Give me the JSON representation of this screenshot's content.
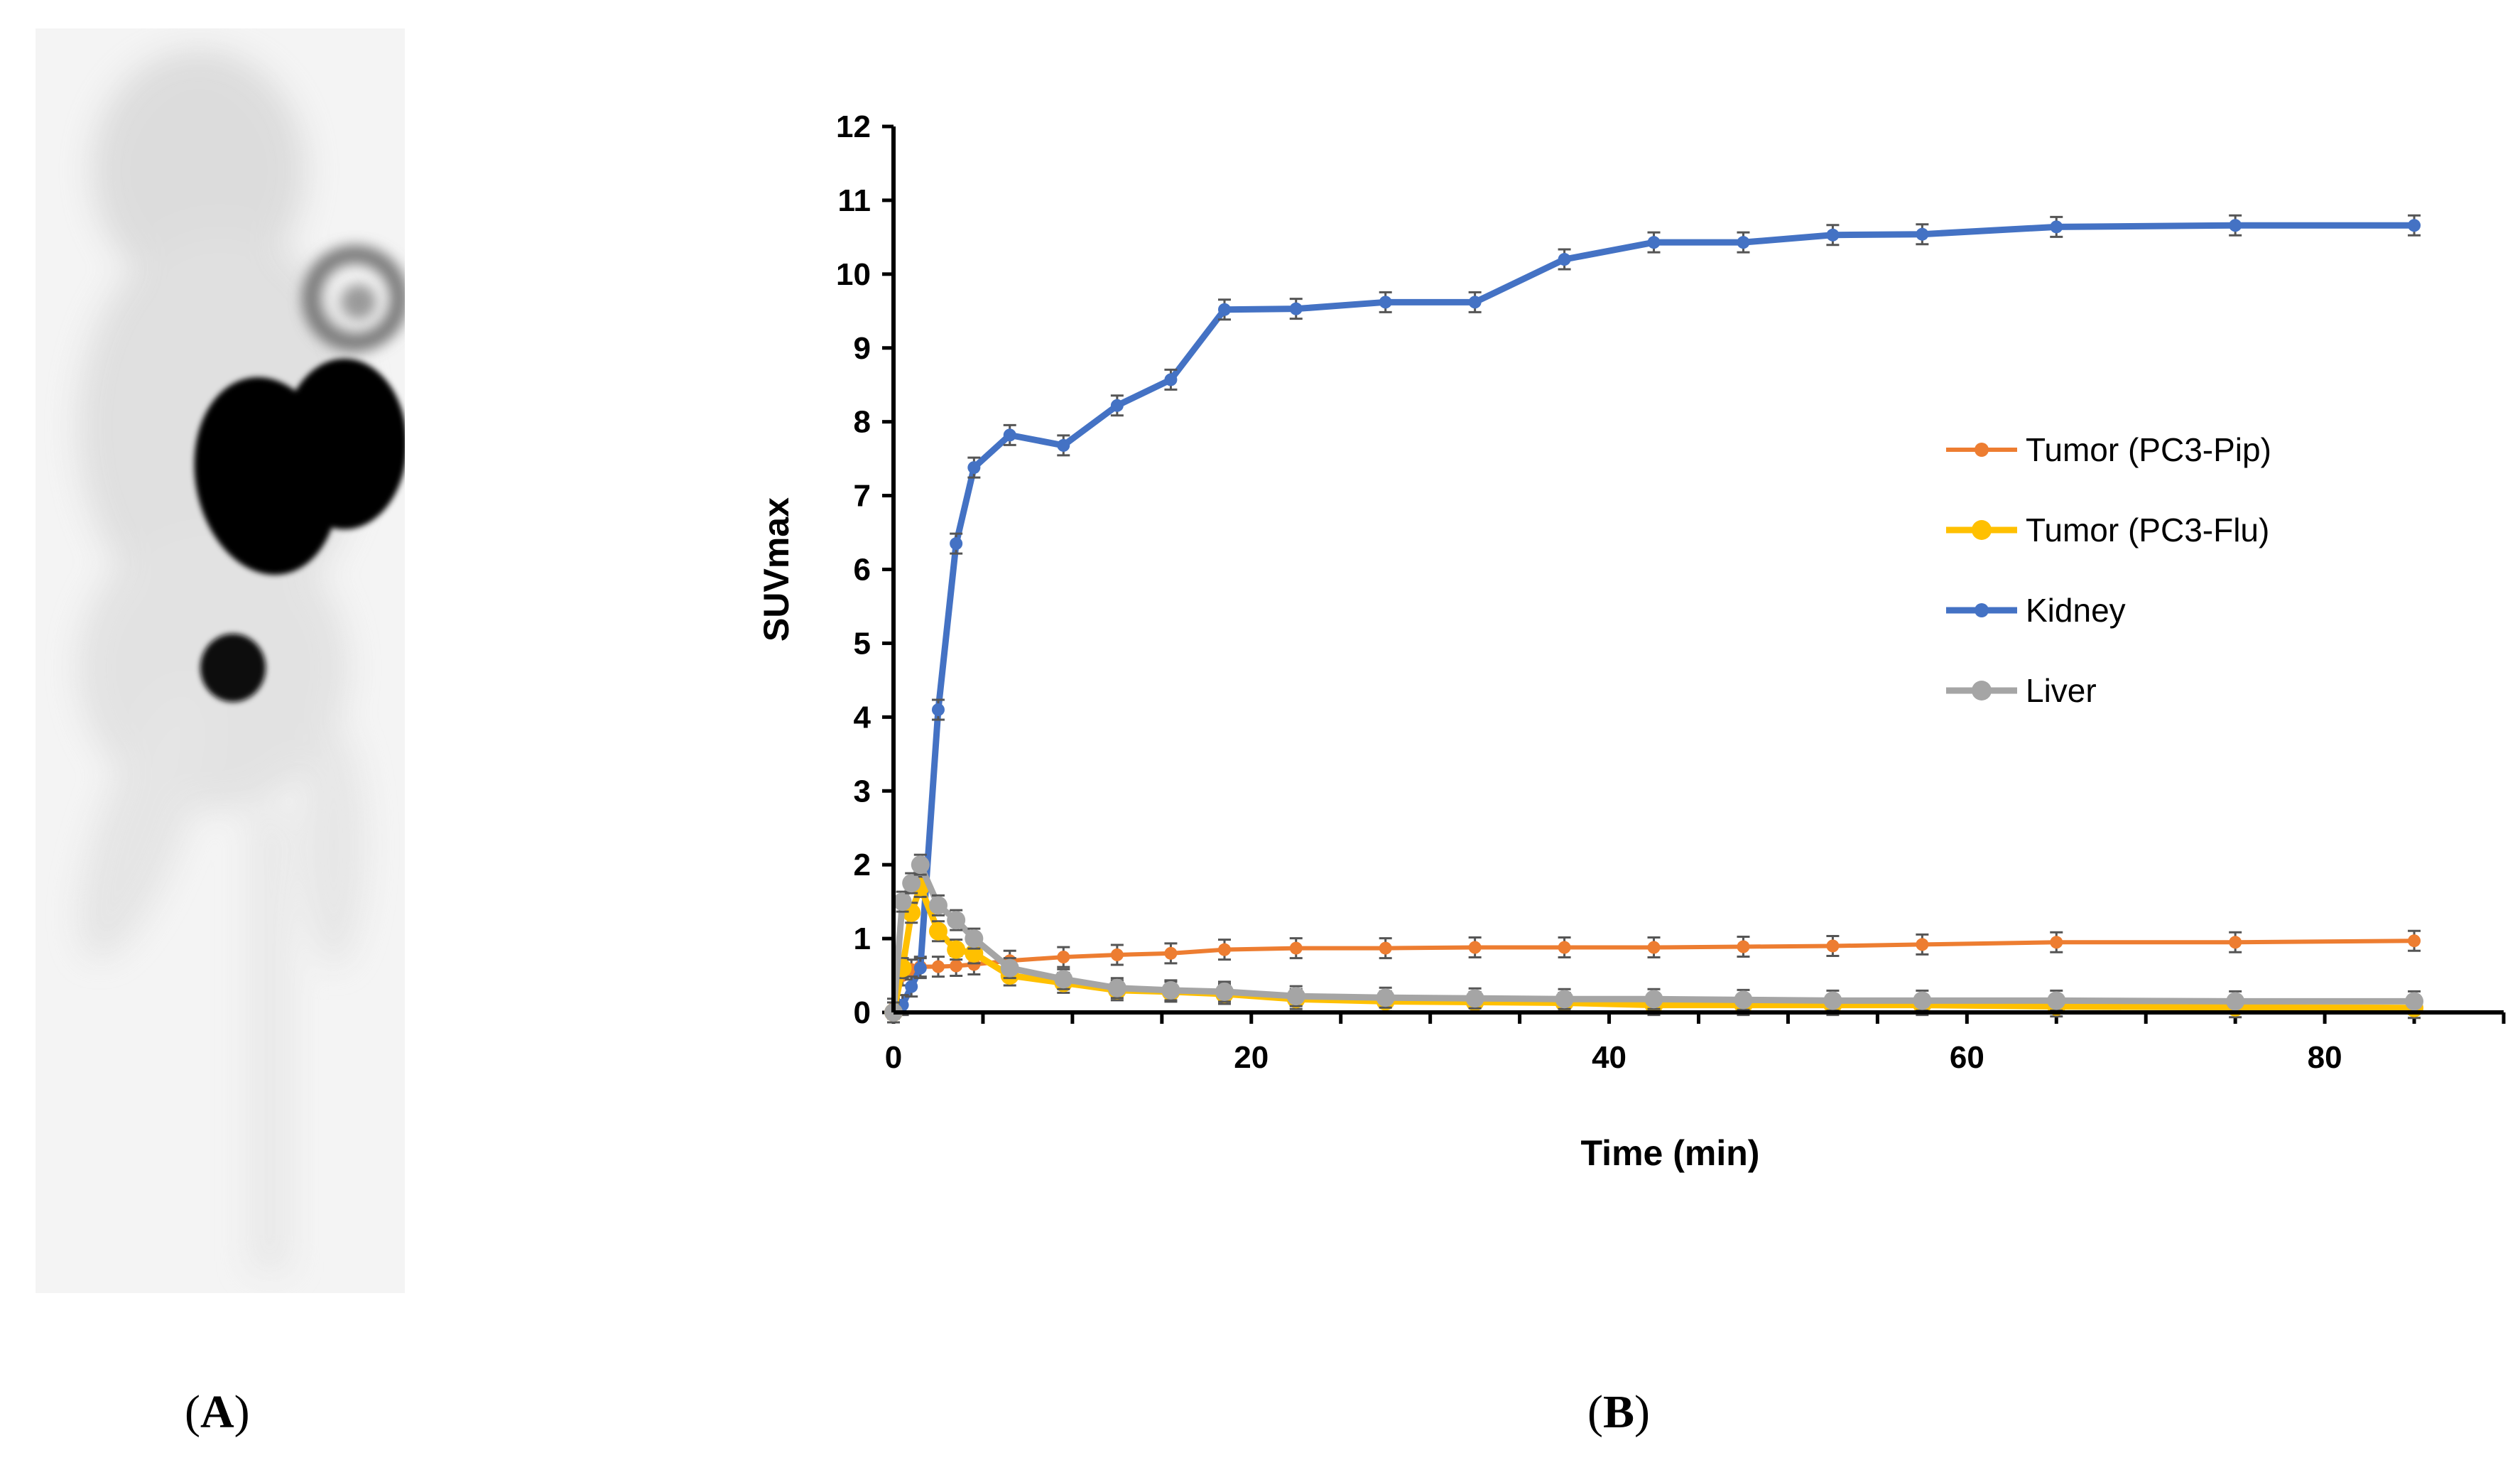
{
  "panels": {
    "a_label": "A",
    "b_label": "B"
  },
  "chart_data": {
    "type": "line",
    "title": "",
    "xlabel": "Time (min)",
    "ylabel": "SUVmax",
    "xlim": [
      0,
      90
    ],
    "ylim": [
      0,
      12
    ],
    "x_ticks": [
      0,
      20,
      40,
      60,
      80
    ],
    "y_ticks": [
      0,
      1,
      2,
      3,
      4,
      5,
      6,
      7,
      8,
      9,
      10,
      11,
      12
    ],
    "grid": false,
    "legend_position": "right",
    "series": [
      {
        "name": "Tumor (PC3-Pip)",
        "color": "#ED7D31",
        "x": [
          0,
          0.5,
          1,
          1.5,
          2.5,
          3.5,
          4.5,
          6.5,
          9.5,
          12.5,
          15.5,
          18.5,
          22.5,
          27.5,
          32.5,
          37.5,
          42.5,
          47.5,
          52.5,
          57.5,
          65,
          75,
          85
        ],
        "values": [
          0.05,
          0.5,
          0.58,
          0.62,
          0.62,
          0.63,
          0.65,
          0.7,
          0.75,
          0.78,
          0.8,
          0.85,
          0.87,
          0.87,
          0.88,
          0.88,
          0.88,
          0.89,
          0.9,
          0.92,
          0.95,
          0.95,
          0.97
        ]
      },
      {
        "name": "Tumor (PC3-Flu)",
        "color": "#FFC000",
        "x": [
          0,
          0.5,
          1,
          1.5,
          2.5,
          3.5,
          4.5,
          6.5,
          9.5,
          12.5,
          15.5,
          18.5,
          22.5,
          27.5,
          32.5,
          37.5,
          42.5,
          47.5,
          52.5,
          57.5,
          65,
          75,
          85
        ],
        "values": [
          0.0,
          0.6,
          1.35,
          1.7,
          1.1,
          0.85,
          0.8,
          0.5,
          0.4,
          0.3,
          0.28,
          0.25,
          0.18,
          0.15,
          0.14,
          0.13,
          0.1,
          0.1,
          0.1,
          0.1,
          0.08,
          0.07,
          0.06
        ]
      },
      {
        "name": "Kidney",
        "color": "#4472C4",
        "x": [
          0,
          0.5,
          1,
          1.5,
          2.5,
          3.5,
          4.5,
          6.5,
          9.5,
          12.5,
          15.5,
          18.5,
          22.5,
          27.5,
          32.5,
          37.5,
          42.5,
          47.5,
          52.5,
          57.5,
          65,
          75,
          85
        ],
        "values": [
          0.0,
          0.1,
          0.35,
          0.6,
          4.1,
          6.35,
          7.38,
          7.82,
          7.68,
          8.22,
          8.57,
          9.52,
          9.53,
          9.62,
          9.62,
          10.2,
          10.43,
          10.43,
          10.53,
          10.54,
          10.64,
          10.66,
          10.66
        ]
      },
      {
        "name": "Liver",
        "color": "#A5A5A5",
        "x": [
          0,
          0.5,
          1,
          1.5,
          2.5,
          3.5,
          4.5,
          6.5,
          9.5,
          12.5,
          15.5,
          18.5,
          22.5,
          27.5,
          32.5,
          37.5,
          42.5,
          47.5,
          52.5,
          57.5,
          65,
          75,
          85
        ],
        "values": [
          0.0,
          1.5,
          1.75,
          2.0,
          1.45,
          1.25,
          1.0,
          0.6,
          0.45,
          0.33,
          0.3,
          0.28,
          0.22,
          0.2,
          0.19,
          0.18,
          0.18,
          0.17,
          0.16,
          0.16,
          0.16,
          0.15,
          0.15
        ]
      }
    ]
  }
}
